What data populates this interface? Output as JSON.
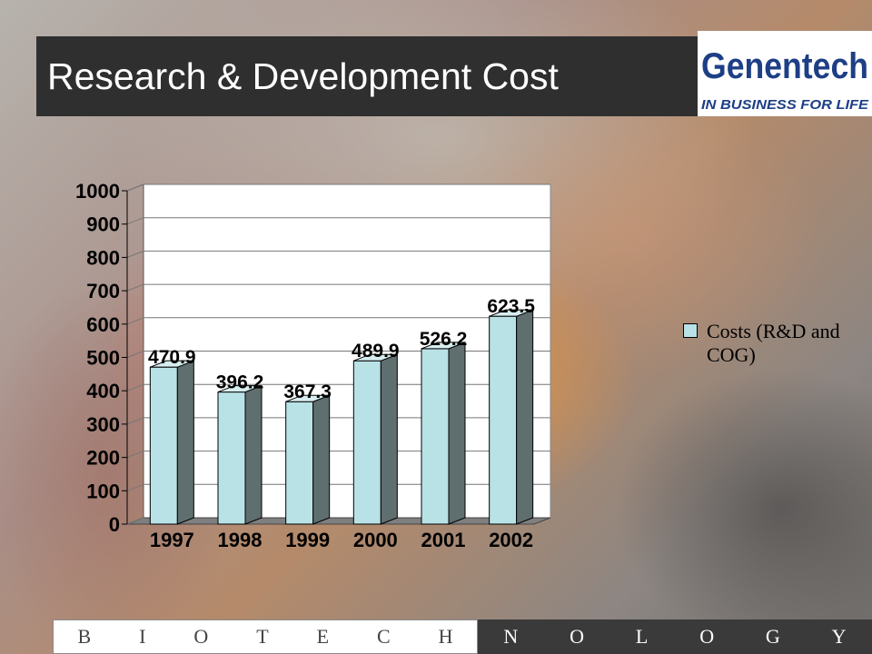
{
  "title": "Research & Development Cost",
  "logo": {
    "name": "Genentech",
    "tagline": "IN BUSINESS FOR LIFE"
  },
  "footer": {
    "left_letters": [
      "B",
      "I",
      "O",
      "T",
      "E",
      "C",
      "H"
    ],
    "right_letters": [
      "N",
      "O",
      "L",
      "O",
      "G",
      "Y"
    ]
  },
  "colors": {
    "bar_front": "#b9e2e6",
    "bar_side": "#5f6e6e",
    "title_bg": "#2f2f2f",
    "footer_dark": "#3a3a3a"
  },
  "chart_data": {
    "type": "bar",
    "categories": [
      "1997",
      "1998",
      "1999",
      "2000",
      "2001",
      "2002"
    ],
    "series": [
      {
        "name": "Costs (R&D and COG)",
        "values": [
          470.9,
          396.2,
          367.3,
          489.9,
          526.2,
          623.5
        ]
      }
    ],
    "data_labels": [
      "470.9",
      "396.2",
      "367.3",
      "489.9",
      "526.2",
      "623.5"
    ],
    "yticks": [
      "0",
      "100",
      "200",
      "300",
      "400",
      "500",
      "600",
      "700",
      "800",
      "900",
      "1000"
    ],
    "ylim": [
      0,
      1000
    ],
    "grid": true,
    "legend_position": "right",
    "legend_label": "Costs (R&D and COG)",
    "style": "3d"
  }
}
